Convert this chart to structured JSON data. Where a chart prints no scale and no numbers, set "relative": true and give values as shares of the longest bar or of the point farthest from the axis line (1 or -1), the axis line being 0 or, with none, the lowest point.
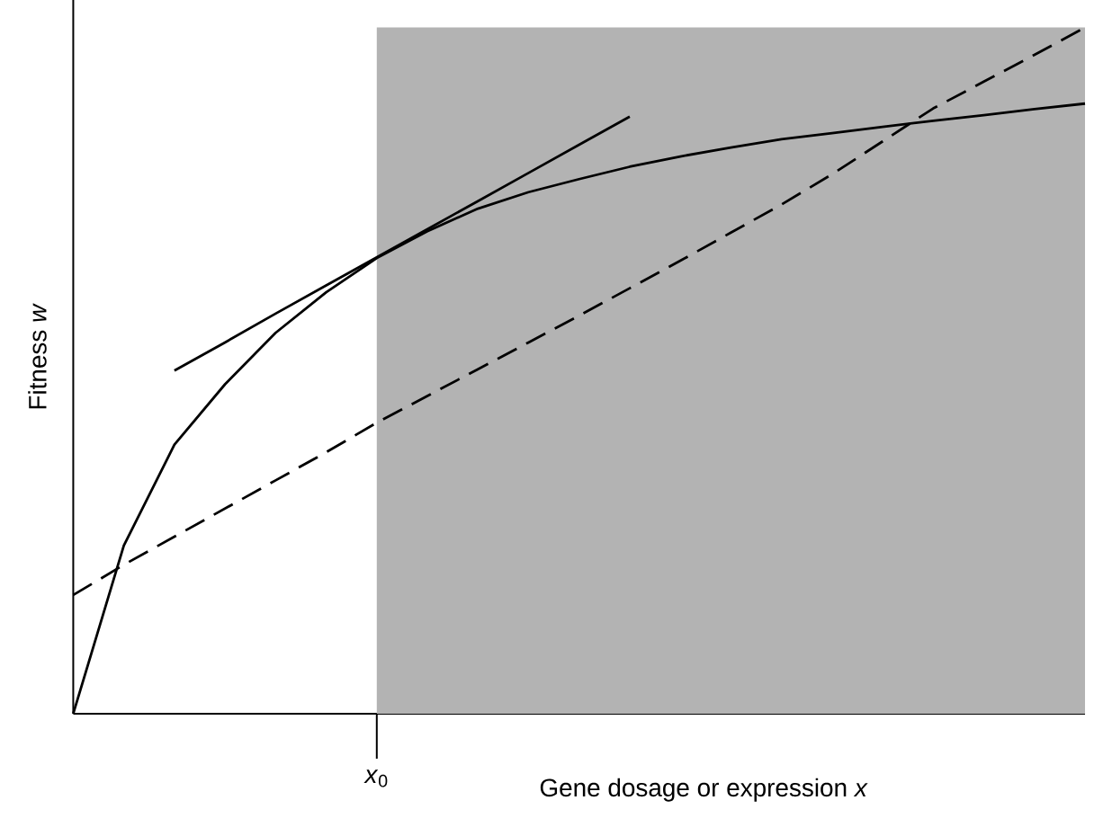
{
  "chart_data": {
    "type": "line",
    "relative": true,
    "xlabel": "Gene dosage or expression *x*",
    "ylabel": "Fitness *w*",
    "annotations": [
      "*x*$_{0}$"
    ],
    "categories": [
      null,
      null,
      null,
      null,
      null,
      null,
      null,
      null,
      null,
      null,
      null,
      null,
      null,
      null,
      null,
      null,
      null,
      null,
      null,
      null,
      null
    ],
    "series": [
      {
        "type": "area",
        "color": "#b3b3b3",
        "values": [
          null,
          null,
          null,
          null,
          null,
          null,
          1.0,
          1.0,
          1.0,
          1.0,
          1.0,
          1.0,
          1.0,
          1.0,
          1.0,
          1.0,
          1.0,
          1.0,
          1.0,
          1.0,
          1.0
        ]
      },
      {
        "color": "#000000",
        "line_style": "solid",
        "values": [
          0,
          0.245,
          0.392,
          0.48,
          0.555,
          0.614,
          0.664,
          0.703,
          0.736,
          0.76,
          0.779,
          0.797,
          0.812,
          0.825,
          0.837,
          0.846,
          0.855,
          0.864,
          0.872,
          0.881,
          0.889
        ]
      },
      {
        "color": "#000000",
        "line_style": "dashed",
        "values": [
          0.173,
          0.217,
          0.258,
          0.299,
          0.34,
          0.381,
          0.424,
          0.463,
          0.502,
          0.541,
          0.58,
          0.62,
          0.66,
          0.701,
          0.742,
          0.786,
          0.834,
          0.882,
          0.921,
          0.96,
          1.0
        ]
      },
      {
        "color": "#000000",
        "line_style": "solid",
        "values": [
          null,
          null,
          0.5,
          0.541,
          0.583,
          0.624,
          0.665,
          0.706,
          0.747,
          0.788,
          0.829,
          0.87,
          null,
          null,
          null,
          null,
          null,
          null,
          null,
          null,
          null
        ]
      }
    ]
  }
}
